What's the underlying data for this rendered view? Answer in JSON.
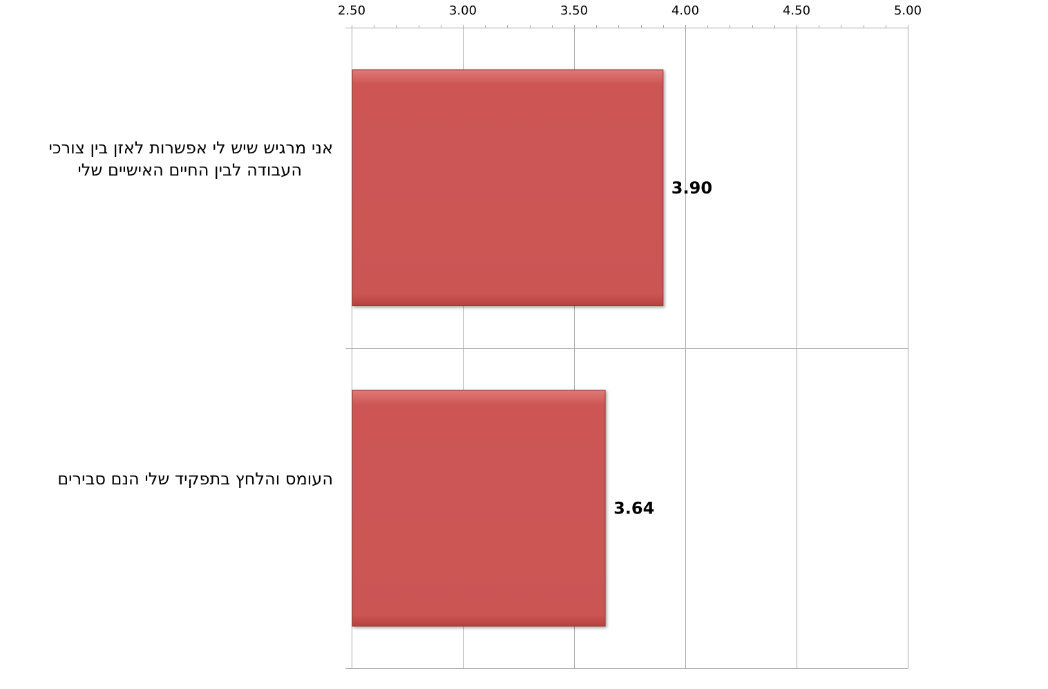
{
  "chart_data": {
    "type": "bar",
    "orientation": "horizontal",
    "categories": [
      "אני מרגיש שיש לי אפשרות לאזן בין צורכי העבודה לבין החיים האישיים שלי",
      "העומס והלחץ בתפקיד שלי הנם סבירים"
    ],
    "category_lines": [
      [
        "אני מרגיש שיש לי אפשרות לאזן בין צורכי",
        "העבודה לבין החיים האישיים שלי"
      ],
      [
        "העומס והלחץ בתפקיד שלי הנם סבירים"
      ]
    ],
    "values": [
      3.9,
      3.64
    ],
    "data_labels": [
      "3.90",
      "3.64"
    ],
    "xlim": [
      2.5,
      5.0
    ],
    "x_ticks": [
      "2.50",
      "3.00",
      "3.50",
      "4.00",
      "4.50",
      "5.00"
    ],
    "x_axis_position": "top",
    "grid": true,
    "legend": "none",
    "title": "",
    "xlabel": "",
    "ylabel": "",
    "colors": {
      "bar": "#CD5755",
      "bar_edge": "#8E3432",
      "grid": "#A6A6A6"
    }
  }
}
